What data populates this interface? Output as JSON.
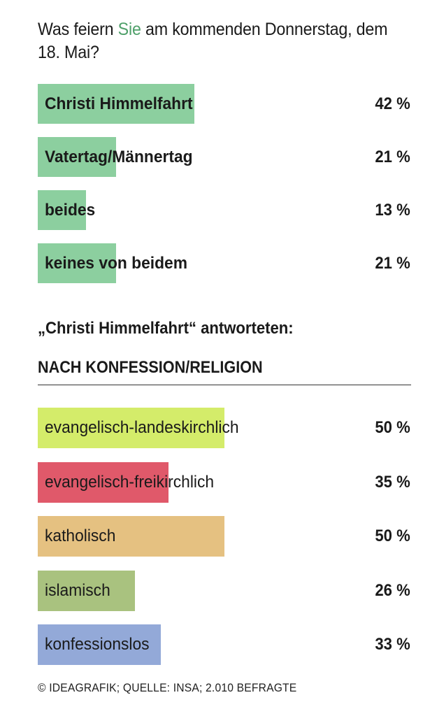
{
  "header": {
    "title_part1": "Was feiern ",
    "title_highlight": "Sie",
    "title_part2": " am kommenden Donnerstag, dem 18. Mai?",
    "highlight_color": "#4fa06a"
  },
  "subheading": "„Christi Himmelfahrt“ antworteten:",
  "section_title": "NACH KONFESSION/RELIGION",
  "footer": "© IDEAGRAFIK; QUELLE: INSA; 2.010 BEFRAGTE",
  "chart_data": [
    {
      "type": "bar",
      "orientation": "horizontal",
      "categories": [
        "Christi Himmelfahrt",
        "Vatertag/Männertag",
        "beides",
        "keines von beidem"
      ],
      "values": [
        42,
        21,
        13,
        21
      ],
      "value_labels": [
        "42 %",
        "21 %",
        "13 %",
        "21 %"
      ],
      "colors": [
        "#8ccf9f",
        "#8ccf9f",
        "#8ccf9f",
        "#8ccf9f"
      ],
      "xlim": [
        0,
        100
      ]
    },
    {
      "type": "bar",
      "orientation": "horizontal",
      "categories": [
        "evangelisch-landeskirchlich",
        "evangelisch-freikirchlich",
        "katholisch",
        "islamisch",
        "konfessionslos"
      ],
      "values": [
        50,
        35,
        50,
        26,
        33
      ],
      "value_labels": [
        "50 %",
        "35 %",
        "50 %",
        "26 %",
        "33 %"
      ],
      "colors": [
        "#d4ec6a",
        "#e0596a",
        "#e5c181",
        "#a9c27f",
        "#93a9d8"
      ],
      "xlim": [
        0,
        100
      ]
    }
  ]
}
